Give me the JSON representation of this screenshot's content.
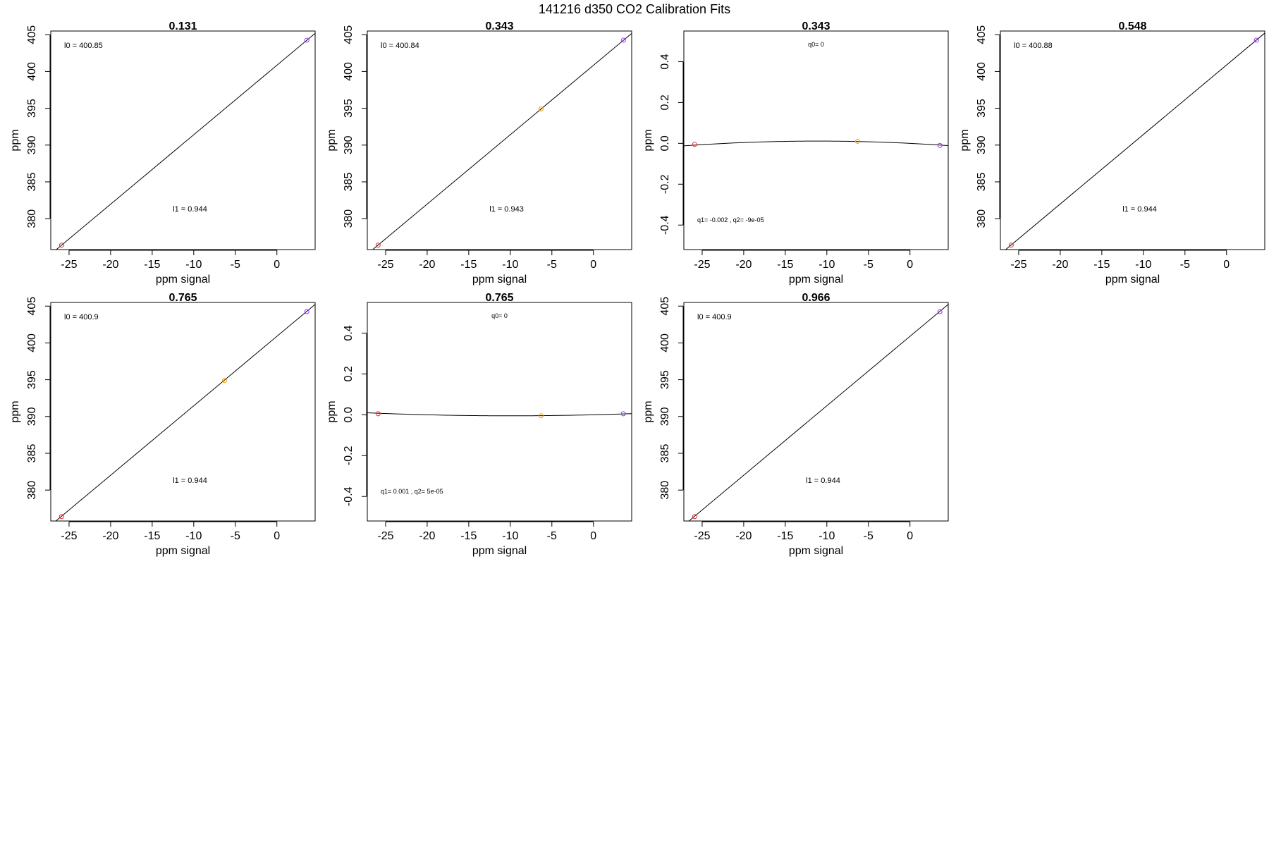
{
  "figure": {
    "title": "141216   d350   CO2 Calibration Fits"
  },
  "chart_data": [
    {
      "type": "line",
      "title": "0.131",
      "xlabel": "ppm signal",
      "ylabel": "ppm",
      "xlim": [
        -27.2,
        4.6
      ],
      "ylim": [
        375.8,
        405.5
      ],
      "xticks": [
        -25,
        -20,
        -15,
        -10,
        -5,
        0
      ],
      "yticks": [
        380,
        385,
        390,
        395,
        400,
        405
      ],
      "series": [
        {
          "kind": "fit-line",
          "x": [
            -27.2,
            4.6
          ],
          "y": [
            375.17,
            405.19
          ]
        },
        {
          "kind": "points",
          "x": [
            -25.9,
            3.6
          ],
          "y": [
            376.4,
            404.25
          ],
          "colors": [
            "#e03030",
            "#9b30ff"
          ]
        }
      ],
      "annotations": [
        {
          "text": "l0 =  400.85",
          "pos": "top-left"
        },
        {
          "text": "l1 =  0.944",
          "pos": "lower-center"
        }
      ],
      "grid": false
    },
    {
      "type": "line",
      "title": "0.343",
      "xlabel": "ppm signal",
      "ylabel": "ppm",
      "xlim": [
        -27.2,
        4.6
      ],
      "ylim": [
        375.8,
        405.5
      ],
      "xticks": [
        -25,
        -20,
        -15,
        -10,
        -5,
        0
      ],
      "yticks": [
        380,
        385,
        390,
        395,
        400,
        405
      ],
      "series": [
        {
          "kind": "fit-line",
          "x": [
            -27.2,
            4.6
          ],
          "y": [
            375.19,
            405.18
          ]
        },
        {
          "kind": "points",
          "x": [
            -25.9,
            -6.3,
            3.6
          ],
          "y": [
            376.4,
            394.9,
            404.25
          ],
          "colors": [
            "#e03030",
            "#ff9900",
            "#9b30ff"
          ]
        }
      ],
      "annotations": [
        {
          "text": "l0 =  400.84",
          "pos": "top-left"
        },
        {
          "text": "l1 =  0.943",
          "pos": "lower-center"
        }
      ],
      "grid": false
    },
    {
      "type": "line",
      "title": "0.343",
      "xlabel": "ppm signal",
      "ylabel": "ppm",
      "xlim": [
        -27.2,
        4.6
      ],
      "ylim": [
        -0.52,
        0.55
      ],
      "xticks": [
        -25,
        -20,
        -15,
        -10,
        -5,
        0
      ],
      "yticks": [
        -0.4,
        -0.2,
        0.0,
        0.2,
        0.4
      ],
      "yticklabels": [
        "-0.4",
        "-0.2",
        "0.0",
        "0.2",
        "0.4"
      ],
      "series": [
        {
          "kind": "fit-curve",
          "q": [
            0,
            -0.002,
            -9e-05
          ]
        },
        {
          "kind": "points",
          "x": [
            -25.9,
            -6.3,
            3.6
          ],
          "y": [
            -0.005,
            0.01,
            -0.01
          ],
          "colors": [
            "#e03030",
            "#ff9900",
            "#9b30ff"
          ]
        }
      ],
      "annotations": [
        {
          "text": "q0= 0",
          "pos": "top-center"
        },
        {
          "text": "q1= -0.002 , q2= -9e-05",
          "pos": "bottom-left"
        }
      ],
      "grid": false
    },
    {
      "type": "line",
      "title": "0.548",
      "xlabel": "ppm signal",
      "ylabel": "ppm",
      "xlim": [
        -27.2,
        4.6
      ],
      "ylim": [
        375.8,
        405.5
      ],
      "xticks": [
        -25,
        -20,
        -15,
        -10,
        -5,
        0
      ],
      "yticks": [
        380,
        385,
        390,
        395,
        400,
        405
      ],
      "series": [
        {
          "kind": "fit-line",
          "x": [
            -27.2,
            4.6
          ],
          "y": [
            375.2,
            405.22
          ]
        },
        {
          "kind": "points",
          "x": [
            -25.9,
            3.6
          ],
          "y": [
            376.4,
            404.25
          ],
          "colors": [
            "#e03030",
            "#9b30ff"
          ]
        }
      ],
      "annotations": [
        {
          "text": "l0 =  400.88",
          "pos": "top-left"
        },
        {
          "text": "l1 =  0.944",
          "pos": "lower-center"
        }
      ],
      "grid": false
    },
    {
      "type": "line",
      "title": "0.765",
      "xlabel": "ppm signal",
      "ylabel": "ppm",
      "xlim": [
        -27.2,
        4.6
      ],
      "ylim": [
        375.8,
        405.5
      ],
      "xticks": [
        -25,
        -20,
        -15,
        -10,
        -5,
        0
      ],
      "yticks": [
        380,
        385,
        390,
        395,
        400,
        405
      ],
      "series": [
        {
          "kind": "fit-line",
          "x": [
            -27.2,
            4.6
          ],
          "y": [
            375.22,
            405.24
          ]
        },
        {
          "kind": "points",
          "x": [
            -25.9,
            -6.3,
            3.6
          ],
          "y": [
            376.4,
            394.9,
            404.25
          ],
          "colors": [
            "#e03030",
            "#ff9900",
            "#9b30ff"
          ]
        }
      ],
      "annotations": [
        {
          "text": "l0 =  400.9",
          "pos": "top-left"
        },
        {
          "text": "l1 =  0.944",
          "pos": "lower-center"
        }
      ],
      "grid": false
    },
    {
      "type": "line",
      "title": "0.765",
      "xlabel": "ppm signal",
      "ylabel": "ppm",
      "xlim": [
        -27.2,
        4.6
      ],
      "ylim": [
        -0.52,
        0.55
      ],
      "xticks": [
        -25,
        -20,
        -15,
        -10,
        -5,
        0
      ],
      "yticks": [
        -0.4,
        -0.2,
        0.0,
        0.2,
        0.4
      ],
      "yticklabels": [
        "-0.4",
        "-0.2",
        "0.0",
        "0.2",
        "0.4"
      ],
      "series": [
        {
          "kind": "fit-curve",
          "q": [
            0,
            0.001,
            5e-05
          ]
        },
        {
          "kind": "points",
          "x": [
            -25.9,
            -6.3,
            3.6
          ],
          "y": [
            0.005,
            -0.005,
            0.005
          ],
          "colors": [
            "#e03030",
            "#ff9900",
            "#9b30ff"
          ]
        }
      ],
      "annotations": [
        {
          "text": "q0= 0",
          "pos": "top-center"
        },
        {
          "text": "q1= 0.001 , q2= 5e-05",
          "pos": "bottom-left"
        }
      ],
      "grid": false
    },
    {
      "type": "line",
      "title": "0.966",
      "xlabel": "ppm signal",
      "ylabel": "ppm",
      "xlim": [
        -27.2,
        4.6
      ],
      "ylim": [
        375.8,
        405.5
      ],
      "xticks": [
        -25,
        -20,
        -15,
        -10,
        -5,
        0
      ],
      "yticks": [
        380,
        385,
        390,
        395,
        400,
        405
      ],
      "series": [
        {
          "kind": "fit-line",
          "x": [
            -27.2,
            4.6
          ],
          "y": [
            375.22,
            405.24
          ]
        },
        {
          "kind": "points",
          "x": [
            -25.9,
            3.6
          ],
          "y": [
            376.4,
            404.25
          ],
          "colors": [
            "#e03030",
            "#9b30ff"
          ]
        }
      ],
      "annotations": [
        {
          "text": "l0 =  400.9",
          "pos": "top-left"
        },
        {
          "text": "l1 =  0.944",
          "pos": "lower-center"
        }
      ],
      "grid": false
    }
  ]
}
